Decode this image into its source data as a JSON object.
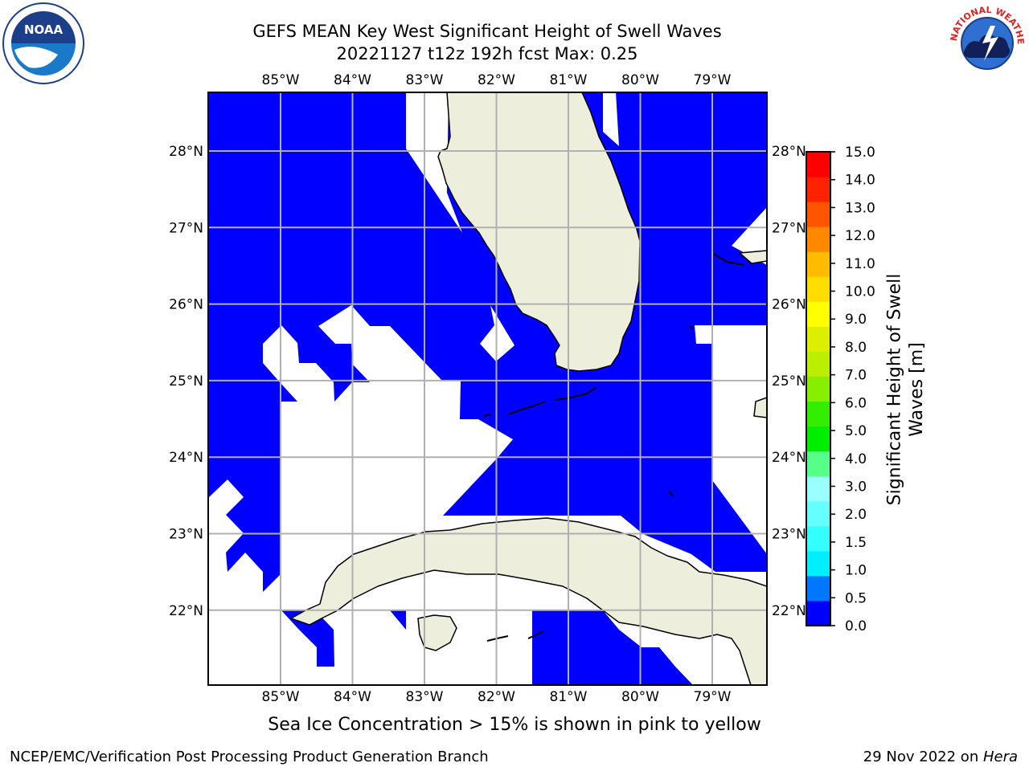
{
  "header": {
    "title_line1": "GEFS MEAN Key West Significant Height of Swell Waves",
    "title_line2": "20221127 t12z 192h fcst   Max: 0.25"
  },
  "logos": {
    "noaa": {
      "name": "noaa-logo",
      "text": "NOAA"
    },
    "nws": {
      "name": "national-weather-service-logo",
      "text": "NATIONAL WEATHER SERVICE"
    }
  },
  "map": {
    "lon_ticks": [
      "85°W",
      "84°W",
      "83°W",
      "82°W",
      "81°W",
      "80°W",
      "79°W"
    ],
    "lat_ticks": [
      "28°N",
      "27°N",
      "26°N",
      "25°N",
      "24°N",
      "23°N",
      "22°N"
    ],
    "colors": {
      "ocean": "#0000ff",
      "land": "#eeeedd",
      "grid": "#b0b0b0",
      "coast": "#000000"
    }
  },
  "colorbar": {
    "label": "Significant Height of Swell Waves [m]",
    "ticks": [
      "15.0",
      "14.0",
      "13.0",
      "12.0",
      "11.0",
      "10.0",
      "9.0",
      "8.0",
      "7.0",
      "6.0",
      "5.0",
      "4.0",
      "3.0",
      "2.0",
      "1.5",
      "1.0",
      "0.5",
      "0.0"
    ],
    "colors": [
      "#0000ff",
      "#0077ff",
      "#00eeff",
      "#33ffff",
      "#66ffff",
      "#99ffff",
      "#55ff88",
      "#00ee00",
      "#33ee00",
      "#88ee00",
      "#bbee00",
      "#ddee00",
      "#ffff00",
      "#ffdd00",
      "#ffbb00",
      "#ff8800",
      "#ff5500",
      "#ff2200",
      "#ff0000"
    ]
  },
  "caption": "Sea Ice Concentration > 15% is shown in pink to yellow",
  "footer": {
    "left": "NCEP/EMC/Verification Post Processing Product Generation Branch",
    "right_date": "29 Nov 2022 on ",
    "right_host": "Hera"
  }
}
